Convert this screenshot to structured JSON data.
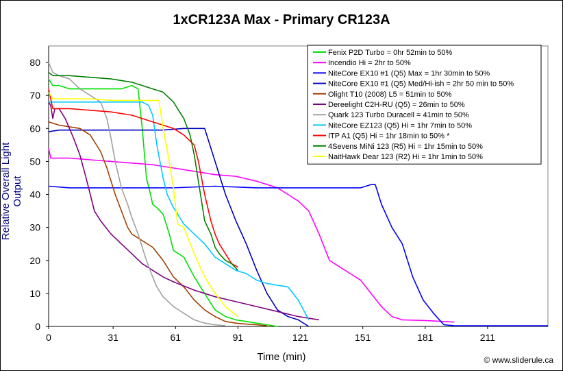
{
  "chart_data": {
    "type": "line",
    "title": "1xCR123A Max - Primary CR123A",
    "xlabel": "Time (min)",
    "ylabel": "Relative Overall Light Output",
    "xlim": [
      0,
      240
    ],
    "ylim": [
      0,
      85
    ],
    "xticks": [
      0,
      31,
      61,
      91,
      121,
      151,
      181,
      211
    ],
    "yticks": [
      0,
      10,
      20,
      30,
      40,
      50,
      60,
      70,
      80
    ],
    "grid": false,
    "legend_position": "top-right",
    "copyright": "© www.sliderule.ca",
    "series": [
      {
        "name": "Fenix P2D Turbo = 0hr 52min to 50%",
        "color": "#00e000",
        "x": [
          0,
          2,
          5,
          10,
          20,
          30,
          35,
          40,
          43,
          45,
          47,
          49,
          50,
          52,
          55,
          58,
          60,
          65,
          70,
          75,
          80,
          85,
          90,
          100,
          110
        ],
        "y": [
          75,
          73,
          73,
          72,
          72,
          72,
          72,
          73,
          72,
          60,
          45,
          40,
          37,
          36,
          34,
          28,
          23,
          21,
          15,
          10,
          5,
          3,
          2,
          1,
          0
        ]
      },
      {
        "name": "Incendio Hi = 2hr to 50%",
        "color": "#ff00ff",
        "x": [
          0,
          1,
          5,
          10,
          20,
          30,
          40,
          50,
          60,
          70,
          80,
          90,
          100,
          110,
          115,
          120,
          125,
          130,
          135,
          140,
          145,
          150,
          155,
          160,
          165,
          170,
          180,
          190,
          195
        ],
        "y": [
          54,
          51,
          51,
          51,
          50.5,
          50,
          49.5,
          49,
          48,
          47,
          46,
          45.5,
          44,
          42,
          40,
          38,
          35,
          28,
          20,
          18,
          16,
          14,
          10,
          6,
          3,
          2,
          1.8,
          1.5,
          1.3
        ]
      },
      {
        "name": "NiteCore EX10 #1 (Q5) Max = 1hr 30min to 50%",
        "color": "#0000ff",
        "x": [
          0,
          10,
          20,
          40,
          60,
          80,
          100,
          120,
          140,
          150,
          155,
          157,
          160,
          165,
          170,
          175,
          180,
          185,
          190,
          195,
          200,
          240
        ],
        "y": [
          42.5,
          42,
          42,
          42,
          42,
          42.5,
          42,
          42,
          42,
          42,
          43,
          43,
          37,
          30,
          25,
          15,
          8,
          4,
          0.5,
          0.2,
          0.2,
          0.2
        ]
      },
      {
        "name": "NiteCore EX10 #1 (Q5) Med/Hi-ish = 2hr 50 min to 50%",
        "color": "#0000c0",
        "x": [
          0,
          5,
          20,
          40,
          55,
          65,
          70,
          75,
          80,
          85,
          90,
          95,
          100,
          105,
          110,
          115,
          120,
          125
        ],
        "y": [
          59,
          59.5,
          59.5,
          59.5,
          59.5,
          60,
          60,
          60,
          50,
          40,
          32,
          25,
          17,
          10,
          5,
          3,
          2,
          0
        ]
      },
      {
        "name": "Olight T10 (2008) L5 = 51min to 50%",
        "color": "#a04000",
        "x": [
          0,
          5,
          10,
          15,
          20,
          25,
          28,
          32,
          35,
          38,
          40,
          45,
          50,
          55,
          60,
          65,
          70,
          75,
          80,
          85,
          90,
          95,
          100,
          105
        ],
        "y": [
          62,
          61,
          60.5,
          60,
          58,
          53,
          48,
          40,
          35,
          30,
          28,
          26,
          24,
          20,
          15,
          12,
          8,
          5,
          3,
          1.5,
          1,
          0.7,
          0.5,
          0.2
        ]
      },
      {
        "name": "Dereelight C2H-RU (Q5) = 26min to 50%",
        "color": "#800080",
        "x": [
          0,
          1,
          2,
          3,
          5,
          8,
          10,
          12,
          15,
          18,
          20,
          22,
          25,
          30,
          35,
          40,
          45,
          50,
          55,
          60,
          70,
          80,
          90,
          100,
          110,
          120,
          130
        ],
        "y": [
          68,
          67,
          63,
          66,
          66,
          63,
          60,
          57,
          52,
          45,
          40,
          35,
          32,
          28,
          25,
          22,
          19,
          17,
          15,
          13.5,
          11,
          9,
          7.5,
          6,
          4.5,
          3,
          2
        ]
      },
      {
        "name": "Quark 123 Turbo Duracell = 41min to 50%",
        "color": "#a0a0a0",
        "x": [
          0,
          2,
          5,
          10,
          15,
          20,
          25,
          28,
          30,
          32,
          35,
          38,
          40,
          43,
          45,
          47,
          50,
          52,
          55,
          60,
          65,
          70,
          75,
          80,
          85
        ],
        "y": [
          80,
          77,
          76,
          75,
          72,
          70,
          68,
          63,
          57,
          50,
          42,
          37,
          33,
          28,
          24,
          20,
          15,
          12,
          9,
          6,
          4,
          2,
          1,
          0.5,
          0.2
        ]
      },
      {
        "name": "NiteCore EZ123 (Q5) Hi = 1hr 7min to 50%",
        "color": "#00c8ff",
        "x": [
          0,
          2,
          10,
          20,
          30,
          40,
          45,
          48,
          50,
          52,
          55,
          57,
          60,
          65,
          70,
          75,
          80,
          85,
          90,
          95,
          100,
          105,
          110,
          115,
          120,
          125
        ],
        "y": [
          68,
          68,
          68,
          68,
          68,
          68,
          68,
          67,
          64,
          55,
          45,
          40,
          36,
          31,
          28,
          25,
          21,
          19,
          17,
          16,
          14,
          13,
          12.5,
          12,
          8,
          2
        ]
      },
      {
        "name": "ITP A1 (Q5) Hi = 1hr 18min to 50% *",
        "color": "#ff0000",
        "x": [
          0,
          2,
          5,
          10,
          20,
          30,
          40,
          50,
          55,
          60,
          65,
          70,
          72,
          75,
          78,
          80,
          82,
          85,
          88,
          91
        ],
        "y": [
          72,
          66,
          66,
          66,
          65.5,
          65,
          64,
          62,
          61,
          60,
          58,
          55,
          50,
          40,
          32,
          28,
          25,
          22,
          19,
          18
        ]
      },
      {
        "name": "4Sevens MiNi 123 (R5) Hi = 1hr 15min to 50%",
        "color": "#008000",
        "x": [
          0,
          2,
          10,
          20,
          30,
          40,
          50,
          55,
          60,
          62,
          65,
          68,
          70,
          73,
          75,
          78,
          80,
          82,
          85,
          88,
          91
        ],
        "y": [
          77,
          76,
          76,
          75.5,
          75,
          74,
          72,
          71,
          68,
          66,
          63,
          58,
          52,
          40,
          32,
          28,
          24,
          22,
          20,
          19,
          17
        ]
      },
      {
        "name": "NaitHawk Dear 123 (R2) Hi = 1hr 1min to 50%",
        "color": "#ffff00",
        "x": [
          0,
          2,
          10,
          20,
          30,
          40,
          50,
          53,
          55,
          58,
          60,
          62,
          65,
          70,
          75,
          80,
          85,
          90,
          91
        ],
        "y": [
          71,
          69,
          69,
          69,
          68.5,
          68.5,
          68.5,
          68.5,
          60,
          50,
          42,
          31,
          30,
          22,
          15,
          10,
          6,
          3.5,
          2.8
        ]
      }
    ]
  }
}
